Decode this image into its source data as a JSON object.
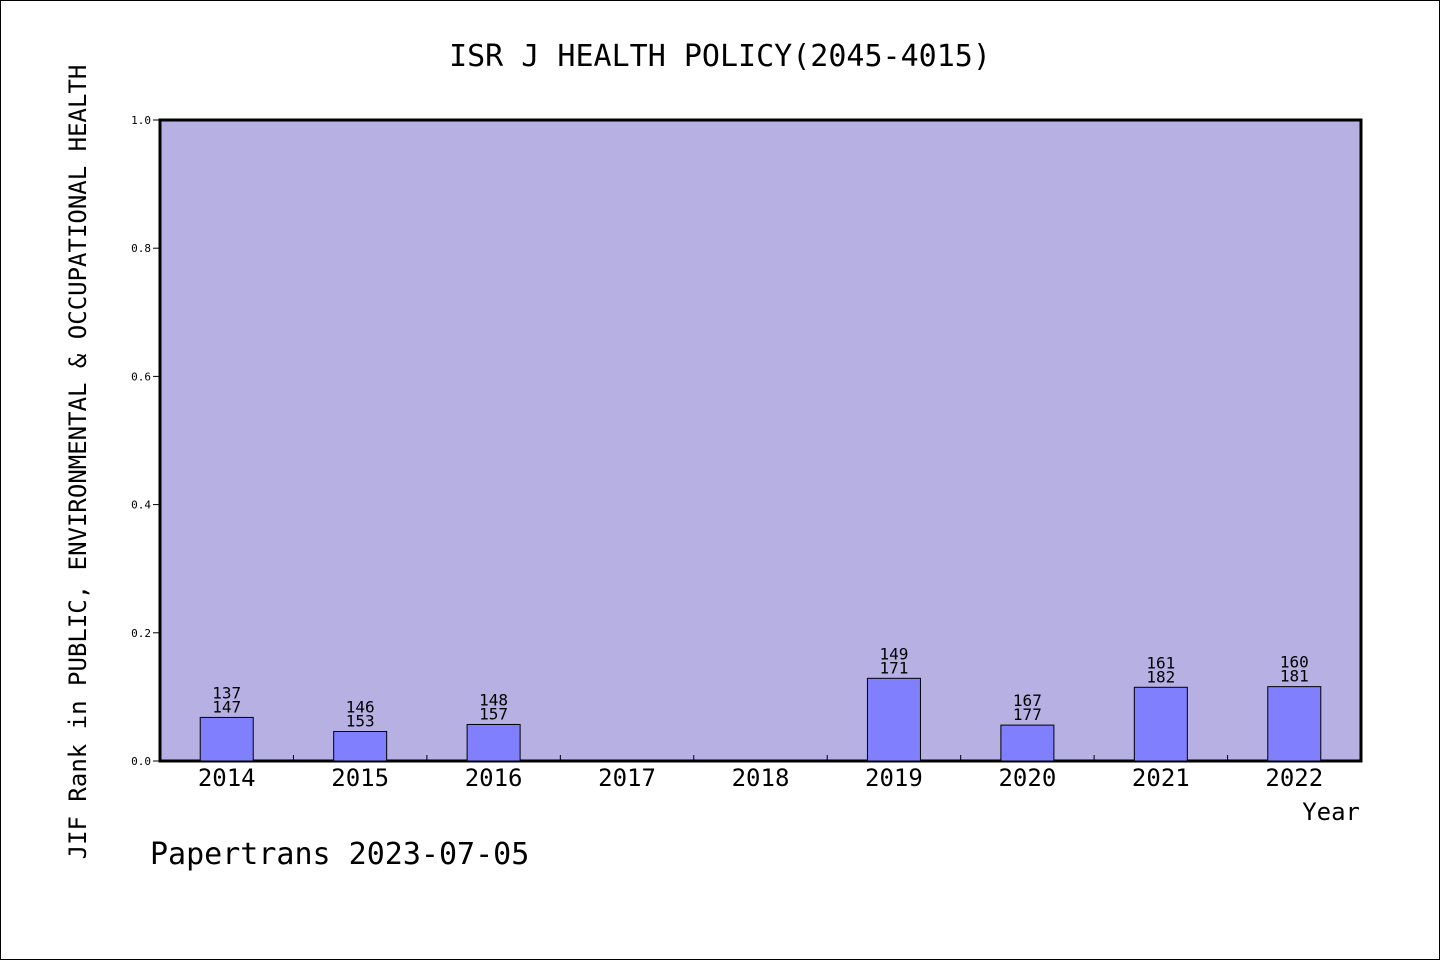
{
  "chart_data": {
    "type": "bar",
    "title": "ISR J HEALTH POLICY(2045-4015)",
    "xlabel": "Year",
    "ylabel": "JIF Rank in PUBLIC, ENVIRONMENTAL & OCCUPATIONAL HEALTH",
    "ylim": [
      0,
      1.0
    ],
    "yticks": [
      "0.0",
      "0.2",
      "0.4",
      "0.6",
      "0.8",
      "1.0"
    ],
    "grid": false,
    "colors": {
      "plot_background": "#b6b0e3",
      "bar": "#8080ff",
      "axis": "#000000"
    },
    "categories": [
      "2014",
      "2015",
      "2016",
      "2017",
      "2018",
      "2019",
      "2020",
      "2021",
      "2022"
    ],
    "values": [
      0.068,
      0.046,
      0.057,
      null,
      null,
      0.129,
      0.056,
      0.115,
      0.116
    ],
    "labels_rank": [
      "137",
      "146",
      "148",
      "",
      "",
      "149",
      "167",
      "161",
      "160"
    ],
    "labels_total": [
      "147",
      "153",
      "157",
      "",
      "",
      "171",
      "177",
      "182",
      "181"
    ]
  },
  "footer": {
    "credit": "Papertrans 2023-07-05"
  }
}
